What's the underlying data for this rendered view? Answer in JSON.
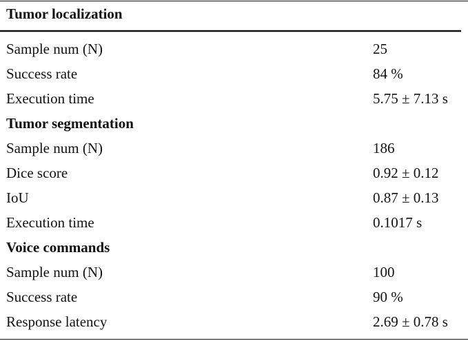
{
  "table": {
    "sections": [
      {
        "title": "Tumor localization",
        "rows": [
          [
            "Sample num (N)",
            "25"
          ],
          [
            "Success rate",
            "84 %"
          ],
          [
            "Execution time",
            "5.75 ± 7.13 s"
          ]
        ]
      },
      {
        "title": "Tumor segmentation",
        "rows": [
          [
            "Sample num (N)",
            "186"
          ],
          [
            "Dice score",
            "0.92 ± 0.12"
          ],
          [
            "IoU",
            "0.87 ± 0.13"
          ],
          [
            "Execution time",
            "0.1017 s"
          ]
        ]
      },
      {
        "title": "Voice commands",
        "rows": [
          [
            "Sample num (N)",
            "100"
          ],
          [
            "Success rate",
            "90 %"
          ],
          [
            "Response latency",
            "2.69 ± 0.78 s"
          ]
        ]
      }
    ]
  }
}
